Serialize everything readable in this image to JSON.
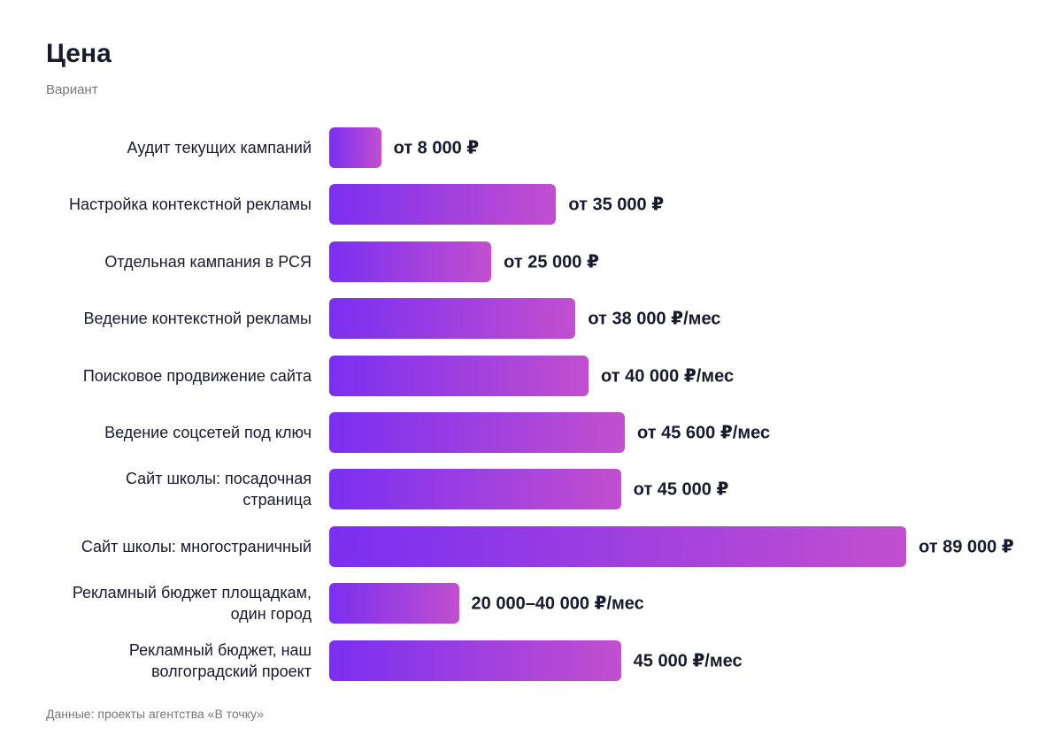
{
  "chart_data": {
    "type": "bar",
    "orientation": "horizontal",
    "title": "Цена",
    "subtitle": "Вариант",
    "source": "Данные: проекты агентства «В точку»",
    "categories": [
      "Аудит текущих кампаний",
      "Настройка контекстной рекламы",
      "Отдельная кампания в РСЯ",
      "Ведение контекстной рекламы",
      "Поисковое продвижение сайта",
      "Ведение соцсетей под ключ",
      "Сайт школы: посадочная\nстраница",
      "Сайт школы: многостраничный",
      "Рекламный бюджет площадкам,\nодин город",
      "Рекламный бюджет, наш\nволгоградский проект"
    ],
    "values": [
      8000,
      35000,
      25000,
      38000,
      40000,
      45600,
      45000,
      89000,
      20000,
      45000
    ],
    "value_labels": [
      "от 8 000 ₽",
      "от 35 000 ₽",
      "от 25 000 ₽",
      "от 38 000 ₽/мес",
      "от 40 000 ₽/мес",
      "от 45 600 ₽/мес",
      "от 45 000 ₽",
      "от 89 000 ₽",
      "20 000–40 000 ₽/мес",
      "45 000 ₽/мес"
    ],
    "color": [
      "#7a2ff1",
      "#c24fcf"
    ]
  }
}
